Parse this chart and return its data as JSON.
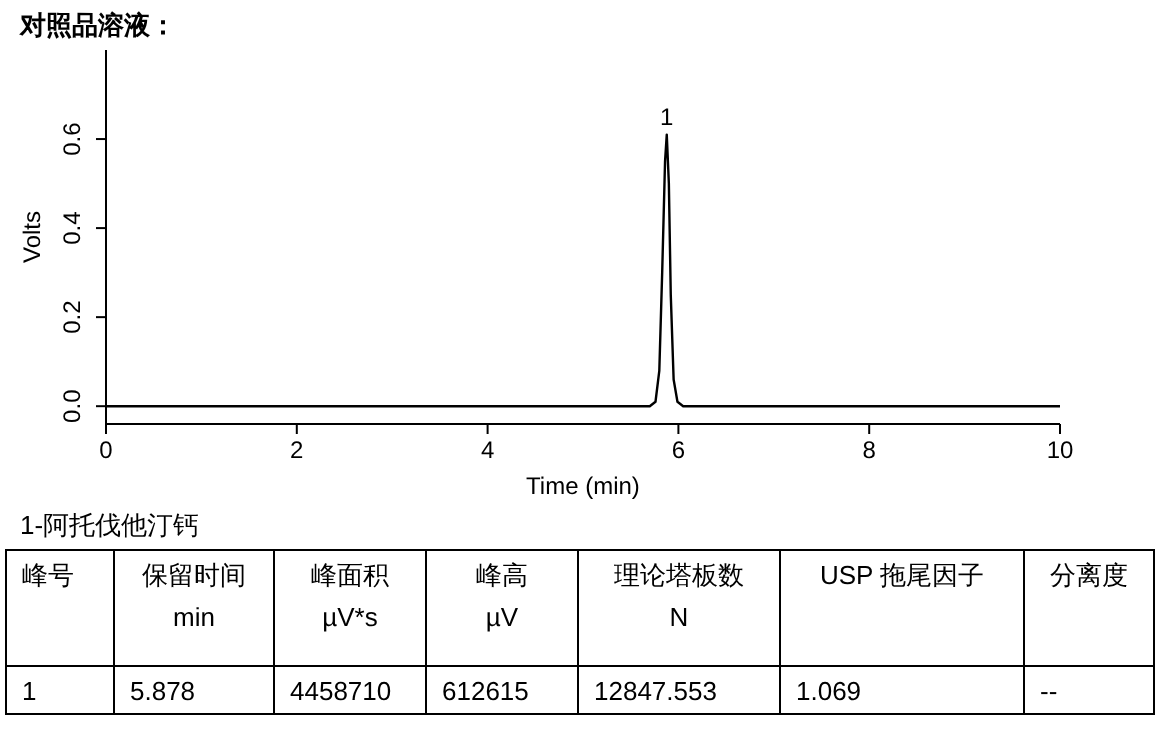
{
  "chart_data": {
    "type": "line",
    "title": "对照品溶液：",
    "xlabel": "Time (min)",
    "ylabel": "Volts",
    "xlim": [
      0,
      10
    ],
    "xticks": [
      0,
      2,
      4,
      6,
      8,
      10
    ],
    "ylim": [
      -0.04,
      0.8
    ],
    "yticks": [
      {
        "value": 0,
        "label": "0.0"
      },
      0.2,
      0.4,
      0.6
    ],
    "series": [
      {
        "color": "#000000",
        "x": [
          0,
          5.7,
          5.76,
          5.8,
          5.83,
          5.86,
          5.878,
          5.9,
          5.92,
          5.95,
          5.99,
          6.05,
          10
        ],
        "values": [
          0,
          0,
          0.01,
          0.08,
          0.3,
          0.55,
          0.61,
          0.5,
          0.25,
          0.06,
          0.01,
          0,
          0
        ]
      }
    ],
    "annotations": [
      {
        "text": "1",
        "x": 5.878,
        "y": 0.61
      },
      "1-阿托伐他汀钙",
      "峰号",
      "保留时间\nmin",
      "峰面积\nµV*s",
      "峰高\nµV",
      "理论塔板数\nN",
      "USP 拖尾因子",
      "分离度",
      "1",
      "5.878",
      "4458710",
      "612615",
      "12847.553",
      "1.069",
      "--"
    ]
  }
}
